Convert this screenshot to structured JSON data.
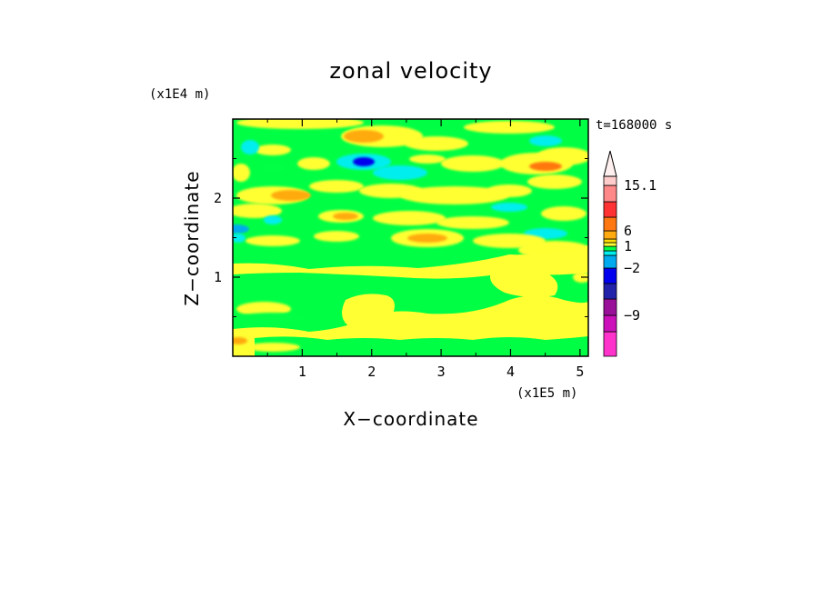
{
  "chart_data": {
    "type": "heatmap",
    "title": "zonal velocity",
    "xlabel": "X−coordinate",
    "ylabel": "Z−coordinate",
    "x_scale_note": "(x1E5 m)",
    "y_scale_note": "(x1E4 m)",
    "time_label": "t=168000 s",
    "xlim": [
      0,
      5.12
    ],
    "ylim": [
      0,
      3.0
    ],
    "x_ticks": [
      1,
      2,
      3,
      4,
      5
    ],
    "x_tick_labels": [
      "1",
      "2",
      "3",
      "4",
      "5"
    ],
    "y_ticks": [
      1,
      2
    ],
    "y_tick_labels": [
      "1",
      "2"
    ],
    "colorbar": {
      "levels": [
        -15,
        -12,
        -9,
        -6,
        -3,
        -2,
        -1,
        0,
        1,
        2,
        3,
        6,
        9,
        12,
        15.1
      ],
      "colors": [
        "#ff33cc",
        "#cc11bb",
        "#991199",
        "#2222aa",
        "#0000ee",
        "#00aaee",
        "#00eeee",
        "#00ff44",
        "#ffff33",
        "#ffdd00",
        "#ffaa11",
        "#ff7711",
        "#ff3333",
        "#ff8888",
        "#ffcccc"
      ],
      "labels": [
        {
          "value": -9,
          "text": "−9"
        },
        {
          "value": -2,
          "text": "−2"
        },
        {
          "value": 1,
          "text": "1"
        },
        {
          "value": 6,
          "text": "6"
        },
        {
          "value": 15.1,
          "text": "15.1"
        }
      ],
      "extend": "max"
    },
    "field_colors": {
      "green": "#00ff44",
      "yellow": "#ffff33",
      "orange": "#ffaa11",
      "dark_orange": "#ff7711",
      "cyan": "#00eeee",
      "blue": "#0000ee",
      "sky": "#00aaee"
    }
  }
}
